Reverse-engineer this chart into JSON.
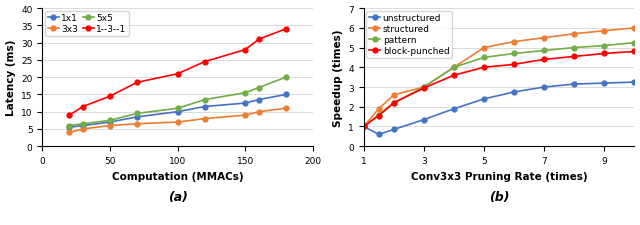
{
  "plot_a": {
    "title": "(a)",
    "xlabel": "Computation (MMACs)",
    "ylabel": "Latency (ms)",
    "xlim": [
      0,
      200
    ],
    "ylim": [
      0,
      40
    ],
    "xticks": [
      0,
      50,
      100,
      150,
      200
    ],
    "yticks": [
      0,
      5,
      10,
      15,
      20,
      25,
      30,
      35,
      40
    ],
    "series": [
      {
        "label": "1x1",
        "color": "#4472c4",
        "x": [
          20,
          30,
          50,
          70,
          100,
          120,
          150,
          160,
          180
        ],
        "y": [
          5.5,
          6.0,
          7.0,
          8.5,
          10.0,
          11.5,
          12.5,
          13.5,
          15.0
        ]
      },
      {
        "label": "3x3",
        "color": "#ed7d31",
        "x": [
          20,
          30,
          50,
          70,
          100,
          120,
          150,
          160,
          180
        ],
        "y": [
          4.0,
          5.0,
          6.0,
          6.5,
          7.0,
          8.0,
          9.0,
          10.0,
          11.0
        ]
      },
      {
        "label": "5x5",
        "color": "#70ad47",
        "x": [
          20,
          30,
          50,
          70,
          100,
          120,
          150,
          160,
          180
        ],
        "y": [
          6.0,
          6.5,
          7.5,
          9.5,
          11.0,
          13.5,
          15.5,
          17.0,
          20.0
        ]
      },
      {
        "label": "1--3--1",
        "color": "#ff0000",
        "x": [
          20,
          30,
          50,
          70,
          100,
          120,
          150,
          160,
          180
        ],
        "y": [
          9.0,
          11.5,
          14.5,
          18.5,
          21.0,
          24.5,
          28.0,
          31.0,
          34.0
        ]
      }
    ]
  },
  "plot_b": {
    "title": "(b)",
    "xlabel": "Conv3x3 Pruning Rate (times)",
    "ylabel": "Speedup (times)",
    "xlim": [
      1,
      10
    ],
    "ylim": [
      0,
      7
    ],
    "xticks": [
      1,
      3,
      5,
      7,
      9
    ],
    "yticks": [
      0,
      1,
      2,
      3,
      4,
      5,
      6,
      7
    ],
    "series": [
      {
        "label": "unstructured",
        "color": "#4472c4",
        "x": [
          1,
          1.5,
          2,
          3,
          4,
          5,
          6,
          7,
          8,
          9,
          10
        ],
        "y": [
          1.0,
          0.6,
          0.85,
          1.35,
          1.9,
          2.4,
          2.75,
          3.0,
          3.15,
          3.2,
          3.25
        ]
      },
      {
        "label": "structured",
        "color": "#ed7d31",
        "x": [
          1,
          1.5,
          2,
          3,
          4,
          5,
          6,
          7,
          8,
          9,
          10
        ],
        "y": [
          1.0,
          1.9,
          2.6,
          3.0,
          4.0,
          5.0,
          5.3,
          5.5,
          5.7,
          5.85,
          6.0
        ]
      },
      {
        "label": "pattern",
        "color": "#70ad47",
        "x": [
          1,
          1.5,
          2,
          3,
          4,
          5,
          6,
          7,
          8,
          9,
          10
        ],
        "y": [
          1.0,
          1.6,
          2.2,
          3.0,
          4.0,
          4.5,
          4.7,
          4.85,
          5.0,
          5.1,
          5.25
        ]
      },
      {
        "label": "block-punched",
        "color": "#ff0000",
        "x": [
          1,
          1.5,
          2,
          3,
          4,
          5,
          6,
          7,
          8,
          9,
          10
        ],
        "y": [
          1.0,
          1.55,
          2.2,
          2.95,
          3.6,
          4.0,
          4.15,
          4.4,
          4.55,
          4.7,
          4.8
        ]
      }
    ]
  },
  "figsize": [
    6.4,
    2.26
  ],
  "dpi": 100
}
